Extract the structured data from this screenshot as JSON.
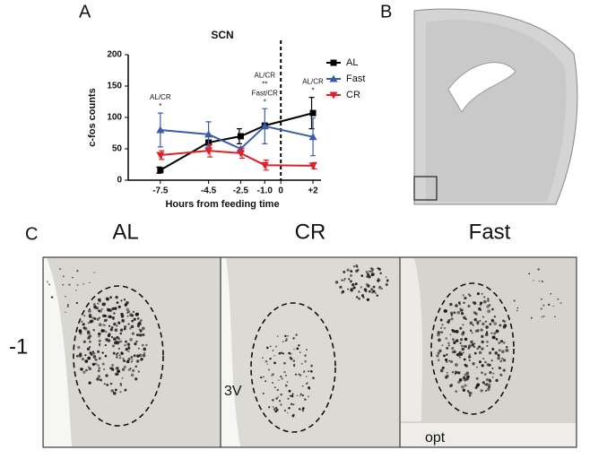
{
  "chart_data": {
    "type": "line",
    "title": "SCN",
    "x_label": "Hours from feeding time",
    "y_label": "c-fos counts",
    "x": [
      -7.5,
      -4.5,
      -2.5,
      -1,
      2
    ],
    "series": [
      {
        "name": "AL",
        "color": "#000000",
        "marker": "square",
        "values": [
          16,
          60,
          70,
          87,
          107
        ],
        "errors": [
          5,
          0,
          12,
          0,
          25
        ]
      },
      {
        "name": "Fast",
        "color": "#3b5ba9",
        "marker": "triangle-up",
        "values": [
          80,
          73,
          50,
          86,
          69
        ],
        "errors": [
          27,
          20,
          0,
          28,
          30
        ]
      },
      {
        "name": "CR",
        "color": "#e0202a",
        "marker": "triangle-down",
        "values": [
          40,
          47,
          43,
          24,
          23
        ],
        "errors": [
          7,
          10,
          8,
          8,
          5
        ]
      }
    ],
    "xlim": [
      -9.5,
      2.5
    ],
    "xticks": [
      -7.5,
      -4.5,
      -2.5,
      {
        "value": -1,
        "label": "-1.0"
      },
      0,
      {
        "value": 2,
        "label": "+2"
      }
    ],
    "ylim": [
      0,
      200
    ],
    "yticks": [
      0,
      50,
      100,
      150,
      200
    ],
    "vline": 0,
    "legend": "right",
    "annotations": [
      {
        "x": -7.5,
        "lines": [
          "AL/CR",
          "*"
        ]
      },
      {
        "x": -1,
        "lines": [
          "AL/CR",
          "**",
          "Fast/CR",
          "*"
        ]
      },
      {
        "x": 2,
        "lines": [
          "AL/CR",
          "*"
        ]
      }
    ]
  },
  "figure": {
    "panel_labels": [
      "A",
      "B",
      "C"
    ],
    "columns": [
      "AL",
      "CR",
      "Fast"
    ],
    "row_label": "-1",
    "image_labels": [
      "3V",
      "opt"
    ]
  }
}
